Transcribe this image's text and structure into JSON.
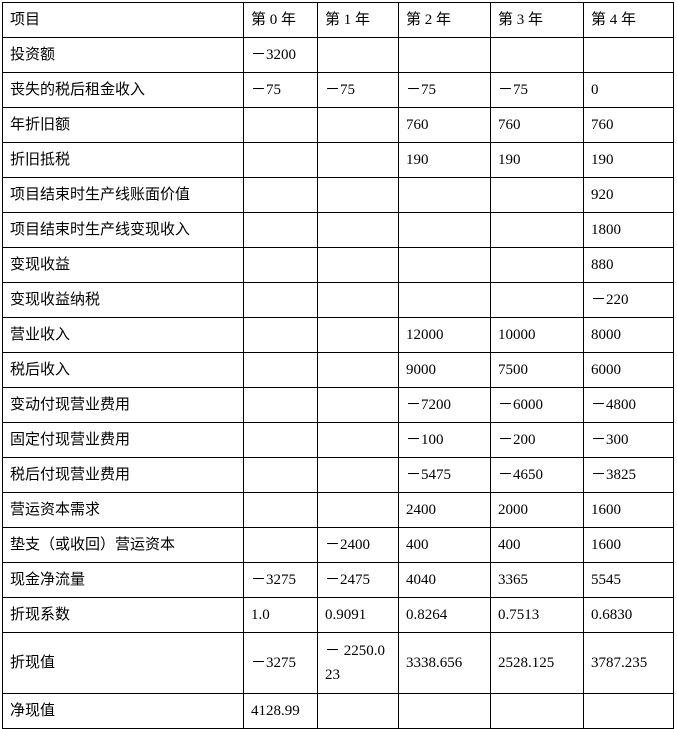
{
  "table": {
    "headers": [
      "项目",
      "第 0 年",
      "第 1 年",
      "第 2 年",
      "第 3 年",
      "第 4 年"
    ],
    "rows": [
      [
        "投资额",
        "－3200",
        "",
        "",
        "",
        ""
      ],
      [
        "丧失的税后租金收入",
        "－75",
        "－75",
        "－75",
        "－75",
        "0"
      ],
      [
        "年折旧额",
        "",
        "",
        "760",
        "760",
        "760"
      ],
      [
        "折旧抵税",
        "",
        "",
        "190",
        "190",
        "190"
      ],
      [
        "项目结束时生产线账面价值",
        "",
        "",
        "",
        "",
        "920"
      ],
      [
        "项目结束时生产线变现收入",
        "",
        "",
        "",
        "",
        "1800"
      ],
      [
        "变现收益",
        "",
        "",
        "",
        "",
        "880"
      ],
      [
        "变现收益纳税",
        "",
        "",
        "",
        "",
        "－220"
      ],
      [
        "营业收入",
        "",
        "",
        "12000",
        "10000",
        "8000"
      ],
      [
        "税后收入",
        "",
        "",
        "9000",
        "7500",
        "6000"
      ],
      [
        "变动付现营业费用",
        "",
        "",
        "－7200",
        "－6000",
        "－4800"
      ],
      [
        "固定付现营业费用",
        "",
        "",
        "－100",
        "－200",
        "－300"
      ],
      [
        "税后付现营业费用",
        "",
        "",
        "－5475",
        "－4650",
        "－3825"
      ],
      [
        "营运资本需求",
        "",
        "",
        "2400",
        "2000",
        "1600"
      ],
      [
        "垫支（或收回）营运资本",
        "",
        "－2400",
        "400",
        "400",
        "1600"
      ],
      [
        "现金净流量",
        "－3275",
        "－2475",
        "4040",
        "3365",
        "5545"
      ],
      [
        "折现系数",
        "1.0",
        "0.9091",
        "0.8264",
        "0.7513",
        "0.6830"
      ],
      [
        "折现值",
        "－3275",
        "－ 2250.023",
        "3338.656",
        "2528.125",
        "3787.235"
      ],
      [
        "净现值",
        "4128.99",
        "",
        "",
        "",
        ""
      ]
    ]
  }
}
